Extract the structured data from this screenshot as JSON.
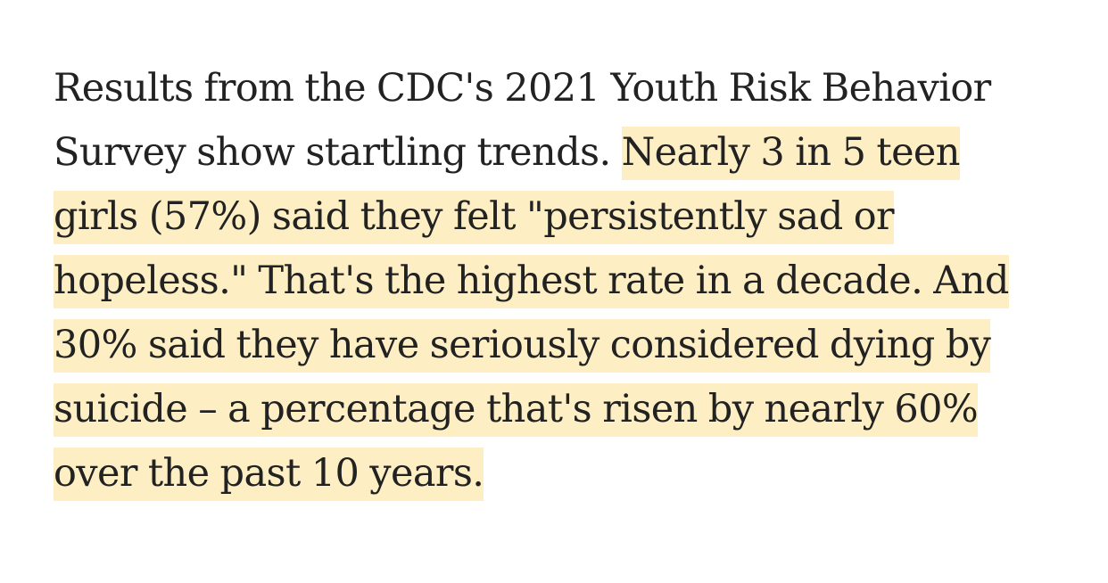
{
  "article": {
    "lines": [
      {
        "plain": "Results from the CDC's 2021 Youth Risk Behavior",
        "highlight": ""
      },
      {
        "plain": "Survey show startling trends. ",
        "highlight": "Nearly 3 in 5 teen"
      },
      {
        "plain": "",
        "highlight": "girls (57%) said they felt \"persistently sad or"
      },
      {
        "plain": "",
        "highlight": "hopeless.\" That's the highest rate in a decade. And"
      },
      {
        "plain": "",
        "highlight": "30% said they have seriously considered dying by"
      },
      {
        "plain": "",
        "highlight": "suicide – a percentage that's risen by nearly 60%"
      },
      {
        "plain": "",
        "highlight": "over the past 10 years."
      }
    ],
    "highlight_color": "#fdefc3",
    "text_color": "#222222"
  }
}
